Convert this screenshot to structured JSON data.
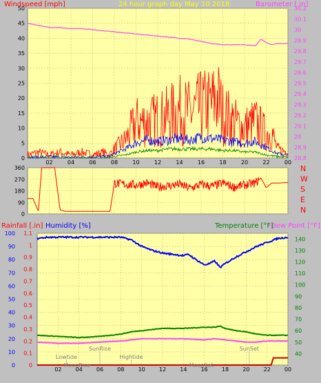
{
  "title": "24 hour graph day   May 10 2018",
  "colors": {
    "plot_bg": "#ffffa8",
    "frame_bg": "#c0c0c0",
    "wind_gust": "#ff0000",
    "wind_avg": "#0000ff",
    "wind_low": "#008000",
    "barometer": "#ff40ff",
    "direction": "#ff0000",
    "humidity": "#0000ff",
    "temperature": "#008000",
    "dewpoint": "#ff40ff",
    "rain": "#cc0000"
  },
  "chart_data": [
    {
      "type": "line",
      "name": "wind-barometer",
      "left_axis_label": "Windspeed [mph]",
      "right_axis_label": "Barometer [.in]",
      "x_ticks": [
        "02",
        "04",
        "06",
        "08",
        "10",
        "12",
        "14",
        "16",
        "18",
        "20",
        "22",
        "00"
      ],
      "x_range_hours": [
        0,
        24
      ],
      "wind_ylim": [
        0,
        50
      ],
      "wind_yticks": [
        "0",
        "5",
        "10",
        "15",
        "20",
        "25",
        "30",
        "35",
        "40",
        "45",
        "50"
      ],
      "baro_ylim": [
        28.8,
        30.2
      ],
      "baro_yticks": [
        "28.8",
        "28.9",
        "29",
        "29.1",
        "29.2",
        "29.3",
        "29.4",
        "29.5",
        "29.6",
        "29.7",
        "29.8",
        "29.9",
        "30",
        "30.1",
        "30.2"
      ],
      "series": [
        {
          "name": "Windspeed",
          "role": "gust_max",
          "x": [
            0,
            1,
            2,
            3,
            4,
            5,
            6,
            7,
            7.5,
            8,
            9,
            10,
            11,
            12,
            13,
            14,
            15,
            16,
            17,
            17.5,
            18,
            19,
            20,
            21,
            22,
            22.5,
            23,
            24
          ],
          "y": [
            1,
            2,
            1,
            2,
            1,
            2,
            1,
            2,
            1,
            3,
            6,
            12,
            12,
            13,
            14,
            16,
            15,
            17,
            18,
            20,
            15,
            12,
            10,
            12,
            8,
            9,
            3,
            2
          ]
        },
        {
          "name": "Windspeed",
          "role": "average",
          "x": [
            0,
            2,
            4,
            6,
            7.5,
            8,
            9,
            10,
            11,
            12,
            13,
            14,
            15,
            16,
            17,
            18,
            19,
            20,
            21,
            22,
            23,
            24
          ],
          "y": [
            0.3,
            0.4,
            0.3,
            0.4,
            0.5,
            1.5,
            3,
            5,
            6,
            5.5,
            6,
            6.5,
            6,
            7,
            6.5,
            6,
            5.5,
            5,
            5.5,
            3.5,
            1.5,
            1
          ]
        },
        {
          "name": "Windspeed",
          "role": "low",
          "x": [
            0,
            7.5,
            8,
            9,
            10,
            11,
            12,
            13,
            14,
            15,
            16,
            17,
            18,
            19,
            20,
            21,
            22,
            23,
            24
          ],
          "y": [
            0,
            0,
            0.5,
            1,
            2,
            2.5,
            2.5,
            3,
            3,
            3,
            3,
            3,
            2.5,
            2.5,
            2,
            2,
            1,
            0.5,
            0.3
          ]
        },
        {
          "name": "Barometer",
          "x": [
            0,
            1,
            2,
            3,
            4,
            5,
            6,
            7,
            8,
            9,
            10,
            11,
            12,
            13,
            14,
            15,
            16,
            17,
            18,
            19,
            20,
            21,
            21.5,
            22,
            22.5,
            23,
            24
          ],
          "y": [
            30.06,
            30.04,
            30.02,
            30.02,
            30.01,
            30.01,
            30.0,
            29.99,
            29.98,
            29.97,
            29.96,
            29.95,
            29.94,
            29.93,
            29.92,
            29.91,
            29.89,
            29.87,
            29.86,
            29.86,
            29.86,
            29.85,
            29.91,
            29.88,
            29.86,
            29.87,
            29.87
          ]
        }
      ]
    },
    {
      "type": "line",
      "name": "wind-direction",
      "ylim": [
        0,
        360
      ],
      "y_ticks": [
        "0",
        "90",
        "180",
        "270",
        "360"
      ],
      "compass_labels": [
        "N",
        "W",
        "S",
        "E",
        "N"
      ],
      "series": [
        {
          "name": "Direction",
          "x": [
            0,
            0.5,
            1,
            1.3,
            2,
            2.5,
            3,
            3.5,
            4,
            5,
            6,
            7,
            7.3,
            7.6,
            8,
            9,
            10,
            11,
            12,
            13,
            14,
            15,
            16,
            17,
            18,
            19,
            20,
            21,
            21.5,
            22,
            22.5,
            23,
            24
          ],
          "y": [
            120,
            120,
            20,
            360,
            360,
            360,
            30,
            20,
            20,
            20,
            20,
            20,
            20,
            20,
            240,
            230,
            225,
            240,
            210,
            220,
            230,
            200,
            230,
            215,
            240,
            210,
            225,
            240,
            280,
            205,
            240,
            240,
            245
          ]
        }
      ]
    },
    {
      "type": "line",
      "name": "rain-humidity-temp",
      "rainfall_label": "Rainfall [.in]",
      "humidity_label": "Humidity [%]",
      "temperature_label": "Temperature [°F]",
      "dewpoint_label": "Dew Point [°F]",
      "humidity_ylim": [
        0,
        100
      ],
      "humidity_yticks": [
        "0",
        "10",
        "20",
        "30",
        "40",
        "50",
        "60",
        "70",
        "80",
        "90",
        "100"
      ],
      "rain_ylim": [
        0,
        1.1
      ],
      "rain_yticks": [
        "0",
        "0.1",
        "0.2",
        "0.3",
        "0.4",
        "0.5",
        "0.6",
        "0.7",
        "0.8",
        "0.9",
        "1",
        "1.1"
      ],
      "temp_ylim": [
        30,
        145
      ],
      "temp_yticks": [
        "40",
        "50",
        "60",
        "70",
        "80",
        "90",
        "100",
        "110",
        "120",
        "130",
        "140"
      ],
      "events": [
        {
          "label": "Lowtide",
          "hour": 2.8,
          "row": 1
        },
        {
          "label": "MoonRise",
          "hour": 3.8,
          "row": 2
        },
        {
          "label": "SunRise",
          "hour": 6.0,
          "row": 0
        },
        {
          "label": "Hightide",
          "hour": 9.0,
          "row": 1
        },
        {
          "label": "MoonSet",
          "hour": 15.7,
          "row": 2
        },
        {
          "label": "SunSet",
          "hour": 20.3,
          "row": 0
        }
      ],
      "series": [
        {
          "name": "Humidity",
          "x": [
            0,
            1,
            2,
            4,
            6,
            8,
            9,
            10,
            11,
            12,
            13,
            14,
            14.5,
            15,
            16,
            16.5,
            17,
            17.5,
            18,
            19,
            20,
            21,
            22,
            23,
            24
          ],
          "y": [
            96,
            97,
            97,
            97,
            97,
            97,
            95,
            90,
            87,
            85,
            84,
            83,
            84,
            81,
            76,
            77,
            79,
            74,
            77,
            82,
            86,
            90,
            93,
            96,
            97
          ]
        },
        {
          "name": "Temperature",
          "x": [
            0,
            2,
            4,
            6,
            8,
            9,
            10,
            12,
            14,
            16,
            17,
            17.5,
            18,
            19,
            20,
            21,
            22,
            24
          ],
          "y": [
            56,
            55,
            54,
            55,
            57,
            59,
            60,
            62,
            62,
            63,
            63,
            64,
            62,
            60,
            59,
            57,
            56,
            56
          ]
        },
        {
          "name": "Dew Point",
          "x": [
            0,
            2,
            4,
            6,
            8,
            9,
            10,
            12,
            14,
            16,
            17,
            18,
            19,
            20,
            21,
            22,
            24
          ],
          "y": [
            50,
            49,
            49,
            50,
            51,
            52,
            53,
            53,
            53,
            52,
            53,
            52,
            51,
            50,
            50,
            51,
            51
          ]
        },
        {
          "name": "Rainfall",
          "x": [
            0,
            22.4,
            22.6,
            23,
            24
          ],
          "y": [
            0,
            0,
            0.06,
            0.06,
            0.06
          ]
        }
      ]
    }
  ]
}
